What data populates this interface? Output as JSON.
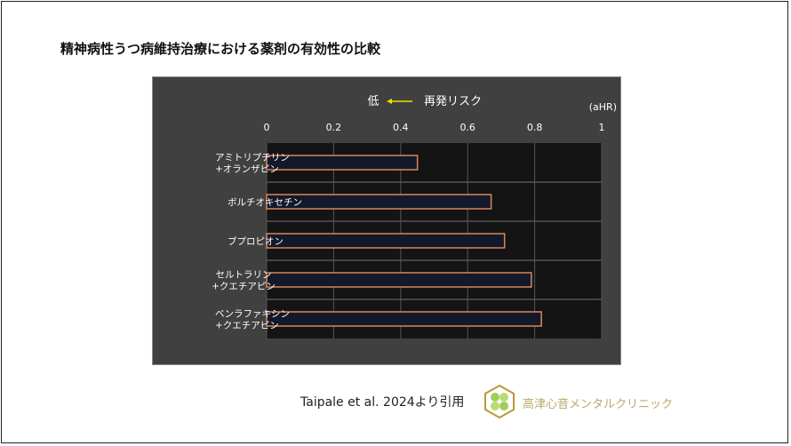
{
  "slide": {
    "title": "精神病性うつ病維持治療における薬剤の有効性の比較",
    "citation": "Taipale et al. 2024より引用",
    "clinic_name": "高津心音メンタルクリニック",
    "logo_icon": "clover-hexagon-logo"
  },
  "chart_data": {
    "type": "bar",
    "orientation": "horizontal",
    "header_left": "低",
    "header_arrow": "←",
    "header_right": "再発リスク",
    "unit_label": "(aHR)",
    "categories": [
      [
        "アミトリプチリン",
        "+オランザピン"
      ],
      [
        "ボルチオキセチン"
      ],
      [
        "ブプロピオン"
      ],
      [
        "セルトラリン",
        "+クエチアピン"
      ],
      [
        "ベンラファキシン",
        "+クエチアピン"
      ]
    ],
    "values": [
      0.45,
      0.67,
      0.71,
      0.79,
      0.82
    ],
    "xlim": [
      0,
      1
    ],
    "xticks": [
      "0",
      "0.2",
      "0.4",
      "0.6",
      "0.8",
      "1"
    ],
    "grid": true,
    "colors": {
      "panel": "#404040",
      "plot": "#141414",
      "bar_fill": "#13182a",
      "bar_edge": "#d8875a",
      "grid": "#555555",
      "arrow": "#f0e000",
      "text": "#ffffff"
    }
  }
}
